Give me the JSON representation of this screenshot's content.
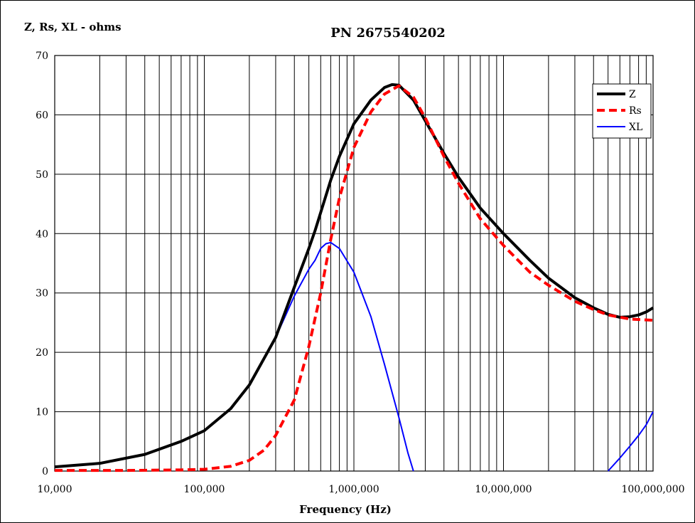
{
  "chart_data": {
    "type": "line",
    "title": "PN 2675540202",
    "xlabel": "Frequency (Hz)",
    "ylabel": "Z, Rs, XL - ohms",
    "x_scale": "log",
    "xlim": [
      10000,
      100000000
    ],
    "ylim": [
      0,
      70
    ],
    "y_ticks": [
      0,
      10,
      20,
      30,
      40,
      50,
      60,
      70
    ],
    "x_ticks": [
      10000,
      100000,
      1000000,
      10000000,
      100000000
    ],
    "x_tick_labels": [
      "10,000",
      "100,000",
      "1,000,000",
      "10,000,000",
      "100,000,000"
    ],
    "grid": true,
    "legend_position": "top-right",
    "series": [
      {
        "name": "Z",
        "color": "#000000",
        "style": "solid-thick",
        "x": [
          10000,
          20000,
          40000,
          70000,
          100000,
          150000,
          200000,
          300000,
          400000,
          500000,
          550000,
          700000,
          800000,
          1000000,
          1300000,
          1600000,
          1800000,
          2000000,
          2500000,
          3000000,
          4000000,
          5000000,
          7000000,
          10000000,
          15000000,
          20000000,
          30000000,
          40000000,
          50000000,
          60000000,
          70000000,
          80000000,
          90000000,
          100000000
        ],
        "values": [
          0.7,
          1.3,
          2.8,
          5.0,
          6.8,
          10.5,
          14.5,
          22.5,
          31,
          37.5,
          40.5,
          49,
          53,
          58.5,
          62.5,
          64.6,
          65.1,
          65.0,
          62.5,
          59,
          53.5,
          49.5,
          44.3,
          40,
          35.5,
          32.5,
          29.2,
          27.5,
          26.4,
          25.9,
          26,
          26.3,
          26.8,
          27.5
        ]
      },
      {
        "name": "Rs",
        "color": "#ff0000",
        "style": "dashed",
        "x": [
          10000,
          30000,
          70000,
          100000,
          150000,
          200000,
          250000,
          300000,
          400000,
          500000,
          600000,
          700000,
          800000,
          1000000,
          1300000,
          1600000,
          2000000,
          2500000,
          3000000,
          4000000,
          5000000,
          7000000,
          10000000,
          15000000,
          20000000,
          30000000,
          40000000,
          50000000,
          70000000,
          100000000
        ],
        "values": [
          0.1,
          0.1,
          0.2,
          0.3,
          0.8,
          1.8,
          3.5,
          6,
          12,
          21,
          30,
          39,
          46,
          54.5,
          60.5,
          63.5,
          64.9,
          63,
          59.5,
          53,
          48.5,
          42.5,
          38,
          33.5,
          31.3,
          28.6,
          27.2,
          26.3,
          25.6,
          25.4
        ]
      },
      {
        "name": "XL",
        "color": "#0000ff",
        "style": "solid-thin",
        "x": [
          10000,
          20000,
          40000,
          70000,
          100000,
          150000,
          200000,
          300000,
          400000,
          500000,
          550000,
          600000,
          650000,
          700000,
          800000,
          1000000,
          1300000,
          1600000,
          2000000,
          2300000,
          2500000
        ],
        "values": [
          0.7,
          1.3,
          2.8,
          5.0,
          6.8,
          10.5,
          14.5,
          22.5,
          29.5,
          34,
          35.5,
          37.5,
          38.3,
          38.5,
          37.5,
          33.5,
          26,
          18,
          9,
          3,
          0
        ]
      },
      {
        "name": "XL",
        "legend": false,
        "color": "#0000ff",
        "style": "solid-thin",
        "x": [
          50000000,
          60000000,
          70000000,
          80000000,
          90000000,
          100000000
        ],
        "values": [
          0,
          2.2,
          4.2,
          6.0,
          7.8,
          10
        ]
      }
    ]
  }
}
